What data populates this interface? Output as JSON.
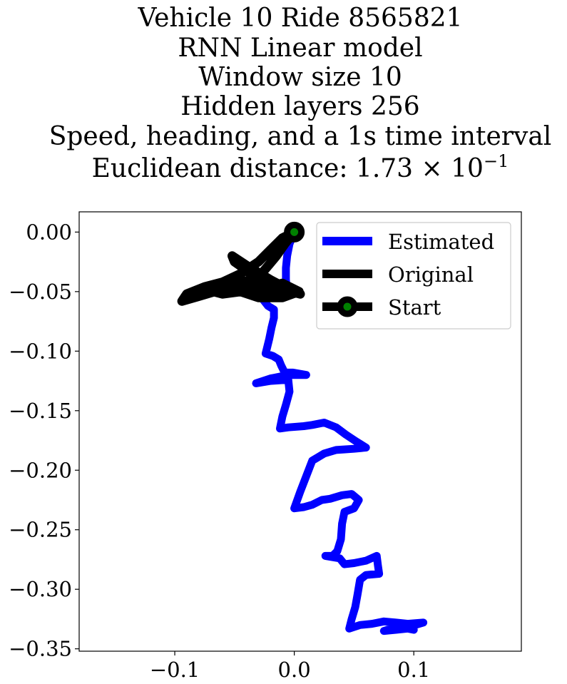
{
  "chart_data": {
    "type": "line",
    "title_lines": [
      "Vehicle 10 Ride 8565821",
      "RNN Linear model",
      "Window size 10",
      "Hidden layers 256",
      "Speed, heading, and a 1s time interval"
    ],
    "title_metric_prefix": "Euclidean distance: 1.73 × 10",
    "title_metric_exponent": "−1",
    "xlabel": "",
    "ylabel": "",
    "xlim": [
      -0.18,
      0.19
    ],
    "ylim": [
      -0.352,
      0.017
    ],
    "x_ticks": [
      {
        "value": -0.1,
        "label": "−0.1"
      },
      {
        "value": 0.0,
        "label": "0.0"
      },
      {
        "value": 0.1,
        "label": "0.1"
      }
    ],
    "y_ticks": [
      {
        "value": 0.0,
        "label": "0.00"
      },
      {
        "value": -0.05,
        "label": "−0.05"
      },
      {
        "value": -0.1,
        "label": "−0.10"
      },
      {
        "value": -0.15,
        "label": "−0.15"
      },
      {
        "value": -0.2,
        "label": "−0.20"
      },
      {
        "value": -0.25,
        "label": "−0.25"
      },
      {
        "value": -0.3,
        "label": "−0.30"
      },
      {
        "value": -0.35,
        "label": "−0.35"
      }
    ],
    "grid": false,
    "legend_position": "top-right",
    "series": [
      {
        "name": "Estimated",
        "color": "#0000ff",
        "points": [
          [
            0.0,
            0.0
          ],
          [
            -0.004,
            -0.01
          ],
          [
            -0.006,
            -0.02
          ],
          [
            -0.007,
            -0.03
          ],
          [
            -0.007,
            -0.04
          ],
          [
            -0.006,
            -0.05
          ],
          [
            -0.01,
            -0.052
          ],
          [
            -0.02,
            -0.053
          ],
          [
            -0.026,
            -0.057
          ],
          [
            -0.022,
            -0.062
          ],
          [
            -0.017,
            -0.065
          ],
          [
            -0.017,
            -0.072
          ],
          [
            -0.019,
            -0.08
          ],
          [
            -0.021,
            -0.09
          ],
          [
            -0.023,
            -0.098
          ],
          [
            -0.024,
            -0.102
          ],
          [
            -0.018,
            -0.104
          ],
          [
            -0.013,
            -0.107
          ],
          [
            -0.011,
            -0.112
          ],
          [
            -0.008,
            -0.118
          ],
          [
            -0.001,
            -0.118
          ],
          [
            0.01,
            -0.12
          ],
          [
            -0.005,
            -0.12
          ],
          [
            -0.02,
            -0.123
          ],
          [
            -0.032,
            -0.127
          ],
          [
            -0.02,
            -0.125
          ],
          [
            -0.005,
            -0.124
          ],
          [
            -0.004,
            -0.134
          ],
          [
            -0.007,
            -0.145
          ],
          [
            -0.01,
            -0.155
          ],
          [
            -0.012,
            -0.165
          ],
          [
            -0.005,
            -0.164
          ],
          [
            0.008,
            -0.163
          ],
          [
            0.015,
            -0.162
          ],
          [
            0.025,
            -0.16
          ],
          [
            0.035,
            -0.164
          ],
          [
            0.043,
            -0.17
          ],
          [
            0.052,
            -0.176
          ],
          [
            0.06,
            -0.181
          ],
          [
            0.05,
            -0.182
          ],
          [
            0.035,
            -0.183
          ],
          [
            0.025,
            -0.186
          ],
          [
            0.015,
            -0.192
          ],
          [
            0.01,
            -0.205
          ],
          [
            0.005,
            -0.218
          ],
          [
            0.0,
            -0.232
          ],
          [
            0.008,
            -0.231
          ],
          [
            0.015,
            -0.229
          ],
          [
            0.023,
            -0.225
          ],
          [
            0.03,
            -0.224
          ],
          [
            0.04,
            -0.221
          ],
          [
            0.048,
            -0.22
          ],
          [
            0.054,
            -0.225
          ],
          [
            0.05,
            -0.232
          ],
          [
            0.042,
            -0.235
          ],
          [
            0.04,
            -0.245
          ],
          [
            0.039,
            -0.258
          ],
          [
            0.036,
            -0.268
          ],
          [
            0.032,
            -0.272
          ],
          [
            0.026,
            -0.272
          ],
          [
            0.038,
            -0.274
          ],
          [
            0.042,
            -0.279
          ],
          [
            0.05,
            -0.278
          ],
          [
            0.06,
            -0.276
          ],
          [
            0.069,
            -0.272
          ],
          [
            0.07,
            -0.28
          ],
          [
            0.071,
            -0.287
          ],
          [
            0.06,
            -0.288
          ],
          [
            0.055,
            -0.292
          ],
          [
            0.053,
            -0.304
          ],
          [
            0.051,
            -0.315
          ],
          [
            0.048,
            -0.325
          ],
          [
            0.046,
            -0.333
          ],
          [
            0.055,
            -0.33
          ],
          [
            0.065,
            -0.329
          ],
          [
            0.075,
            -0.327
          ],
          [
            0.085,
            -0.328
          ],
          [
            0.095,
            -0.329
          ],
          [
            0.108,
            -0.328
          ],
          [
            0.098,
            -0.331
          ],
          [
            0.088,
            -0.333
          ],
          [
            0.078,
            -0.334
          ],
          [
            0.075,
            -0.335
          ],
          [
            0.085,
            -0.334
          ],
          [
            0.095,
            -0.333
          ],
          [
            0.1,
            -0.334
          ]
        ]
      },
      {
        "name": "Original",
        "color": "#000000",
        "points": [
          [
            0.0,
            0.0
          ],
          [
            -0.01,
            -0.005
          ],
          [
            -0.02,
            -0.015
          ],
          [
            -0.03,
            -0.025
          ],
          [
            -0.045,
            -0.035
          ],
          [
            -0.06,
            -0.042
          ],
          [
            -0.075,
            -0.046
          ],
          [
            -0.09,
            -0.052
          ],
          [
            -0.094,
            -0.058
          ],
          [
            -0.08,
            -0.054
          ],
          [
            -0.06,
            -0.048
          ],
          [
            -0.04,
            -0.041
          ],
          [
            -0.025,
            -0.042
          ],
          [
            -0.01,
            -0.045
          ],
          [
            0.005,
            -0.052
          ],
          [
            -0.01,
            -0.048
          ],
          [
            -0.03,
            -0.042
          ],
          [
            -0.04,
            -0.032
          ],
          [
            -0.05,
            -0.025
          ],
          [
            -0.052,
            -0.02
          ],
          [
            -0.04,
            -0.028
          ],
          [
            -0.02,
            -0.04
          ],
          [
            -0.005,
            -0.048
          ],
          [
            -0.02,
            -0.05
          ],
          [
            -0.04,
            -0.05
          ],
          [
            -0.06,
            -0.045
          ],
          [
            -0.075,
            -0.048
          ],
          [
            -0.06,
            -0.052
          ],
          [
            -0.03,
            -0.048
          ],
          [
            -0.01,
            -0.043
          ],
          [
            0.004,
            -0.05
          ],
          [
            -0.01,
            -0.055
          ],
          [
            -0.03,
            -0.055
          ],
          [
            -0.045,
            -0.05
          ],
          [
            -0.03,
            -0.038
          ],
          [
            -0.015,
            -0.02
          ],
          [
            -0.008,
            -0.01
          ],
          [
            0.0,
            0.0
          ]
        ]
      }
    ],
    "start_marker": {
      "name": "Start",
      "x": 0.0,
      "y": 0.0,
      "face_color": "#008000",
      "edge_color": "#000000"
    }
  }
}
